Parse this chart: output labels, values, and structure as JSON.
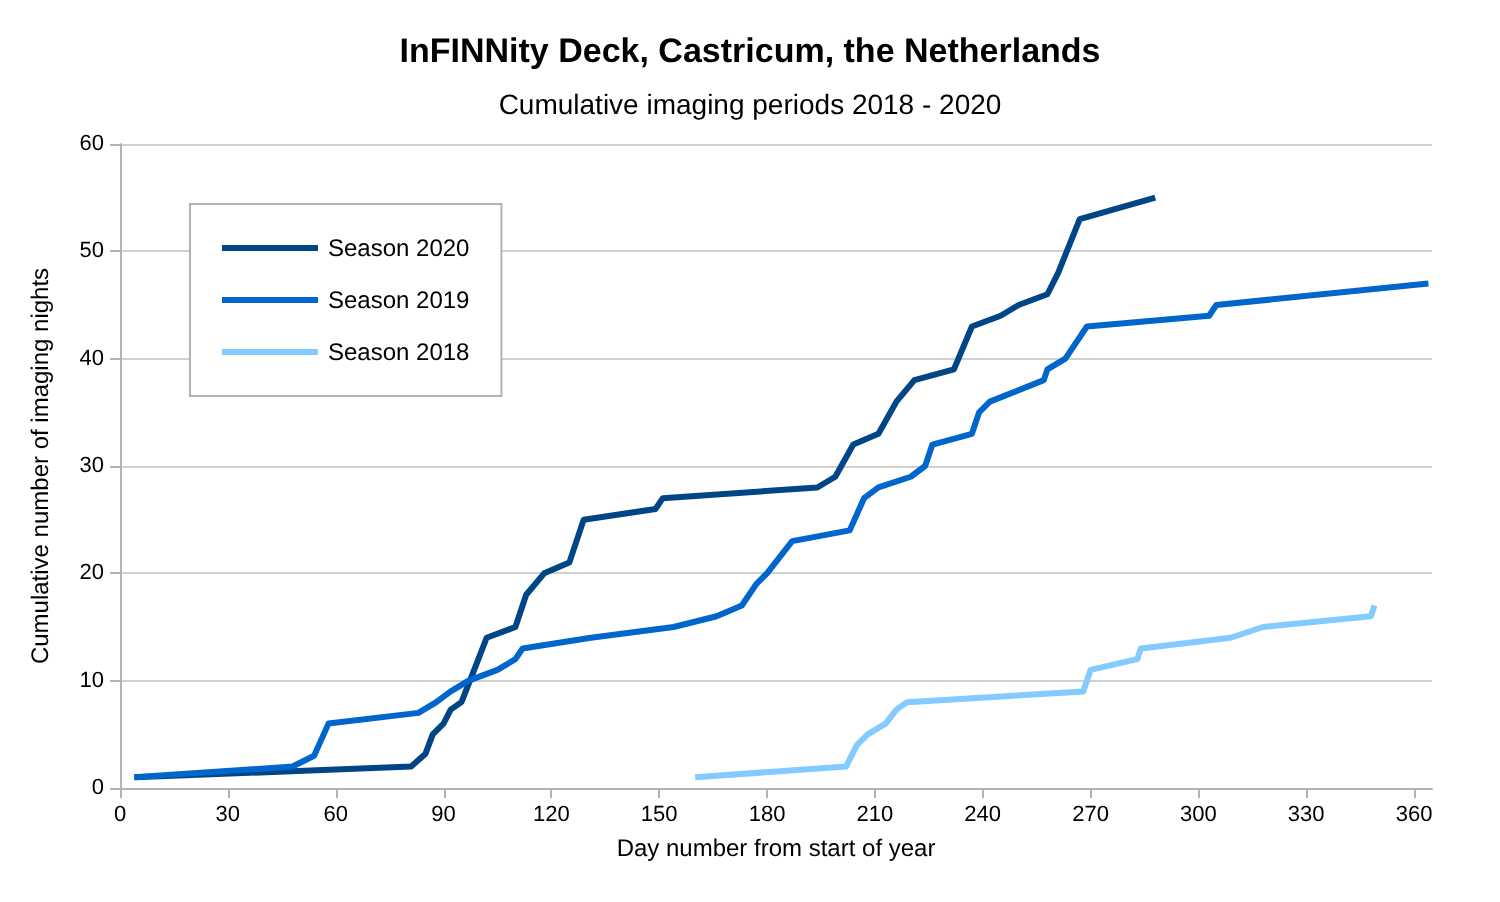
{
  "chart_data": {
    "type": "line",
    "title": "InFINNity Deck, Castricum, the Netherlands",
    "subtitle": "Cumulative imaging periods 2018 - 2020",
    "xlabel": "Day number from start of year",
    "ylabel": "Cumulative number of imaging nights",
    "xlim": [
      0,
      365
    ],
    "xticks": [
      0,
      30,
      60,
      90,
      120,
      150,
      180,
      210,
      240,
      270,
      300,
      330,
      360
    ],
    "ylim": [
      0,
      60
    ],
    "yticks": [
      0,
      10,
      20,
      30,
      40,
      50,
      60
    ],
    "grid": "y",
    "legend": "top left",
    "marker": "none",
    "line_style": "solid",
    "series": [
      {
        "name": "Season 2020",
        "color": "#004586",
        "x": [
          4,
          81,
          85,
          87,
          90,
          92,
          95,
          99,
          102,
          110,
          113,
          118,
          125,
          129,
          149,
          151,
          194,
          199,
          204,
          211,
          216,
          221,
          232,
          237,
          245,
          250,
          258,
          261,
          267,
          288
        ],
        "values": [
          1,
          2,
          3.2,
          5,
          6,
          7.3,
          8,
          11.4,
          14,
          15,
          18,
          20,
          21,
          25,
          26,
          27,
          28,
          29,
          32,
          33,
          36,
          38,
          39,
          43,
          44,
          45,
          46,
          48,
          53,
          55
        ]
      },
      {
        "name": "Season 2019",
        "color": "#0066cc",
        "x": [
          4,
          48,
          54,
          58,
          83,
          88,
          92,
          97,
          105,
          110,
          112,
          131,
          154,
          166,
          173,
          177,
          180,
          187,
          203,
          207,
          211,
          220,
          224,
          226,
          237,
          239,
          242,
          257,
          258,
          263,
          265,
          269,
          303,
          305,
          364
        ],
        "values": [
          1,
          2,
          3,
          6,
          7,
          8,
          9,
          10,
          11,
          12,
          13,
          14,
          15,
          16,
          17,
          19,
          20,
          23,
          24,
          27,
          28,
          29,
          30,
          32,
          33,
          35,
          36,
          38,
          39,
          40,
          41,
          43,
          44,
          45,
          47
        ]
      },
      {
        "name": "Season 2018",
        "color": "#83caff",
        "x": [
          160,
          202,
          205,
          208,
          213,
          216,
          219,
          268,
          270,
          283,
          284,
          309,
          318,
          348,
          349
        ],
        "values": [
          1,
          2,
          4,
          5,
          6,
          7.3,
          8,
          9,
          11,
          12,
          13,
          14,
          15,
          16,
          17
        ]
      }
    ]
  }
}
